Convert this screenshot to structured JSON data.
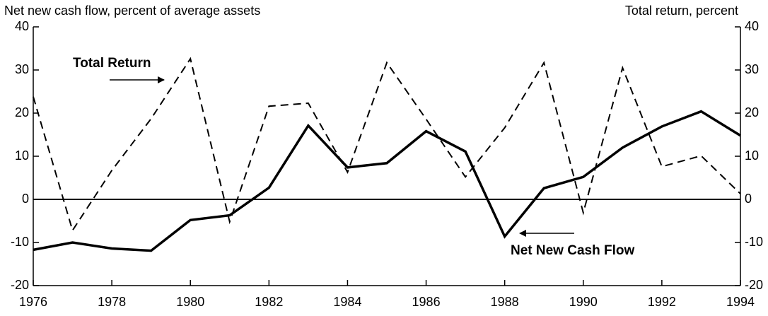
{
  "chart_data": {
    "type": "line",
    "y_label": "Net new cash flow, percent of average assets",
    "y2_label": "Total return, percent",
    "x": [
      1976,
      1977,
      1978,
      1979,
      1980,
      1981,
      1982,
      1983,
      1984,
      1985,
      1986,
      1987,
      1988,
      1989,
      1990,
      1991,
      1992,
      1993,
      1994
    ],
    "xlim": [
      1976,
      1994
    ],
    "xticks": [
      1976,
      1978,
      1980,
      1982,
      1984,
      1986,
      1988,
      1990,
      1992,
      1994
    ],
    "ylim": [
      -20,
      40
    ],
    "yticks": [
      -20,
      -10,
      0,
      10,
      20,
      30,
      40
    ],
    "y2lim": [
      -20,
      40
    ],
    "y2ticks": [
      -20,
      -10,
      0,
      10,
      20,
      30,
      40
    ],
    "series": [
      {
        "name": "Net New Cash Flow",
        "color": "#000000",
        "style": "solid",
        "values": [
          -11.7,
          -10,
          -11.4,
          -11.9,
          -4.8,
          -3.7,
          2.7,
          17.1,
          7.4,
          8.4,
          15.8,
          11.1,
          -8.6,
          2.6,
          5.2,
          12.0,
          16.9,
          20.4,
          14.8
        ]
      },
      {
        "name": "Total Return",
        "color": "#000000",
        "style": "dashed",
        "axis": "y2",
        "values": [
          23.8,
          -7.2,
          6.7,
          18.7,
          32.6,
          -5.2,
          21.6,
          22.3,
          6.3,
          31.7,
          18.6,
          5.2,
          16.6,
          31.7,
          -3.1,
          30.5,
          7.6,
          10.1,
          1.3
        ]
      }
    ]
  }
}
